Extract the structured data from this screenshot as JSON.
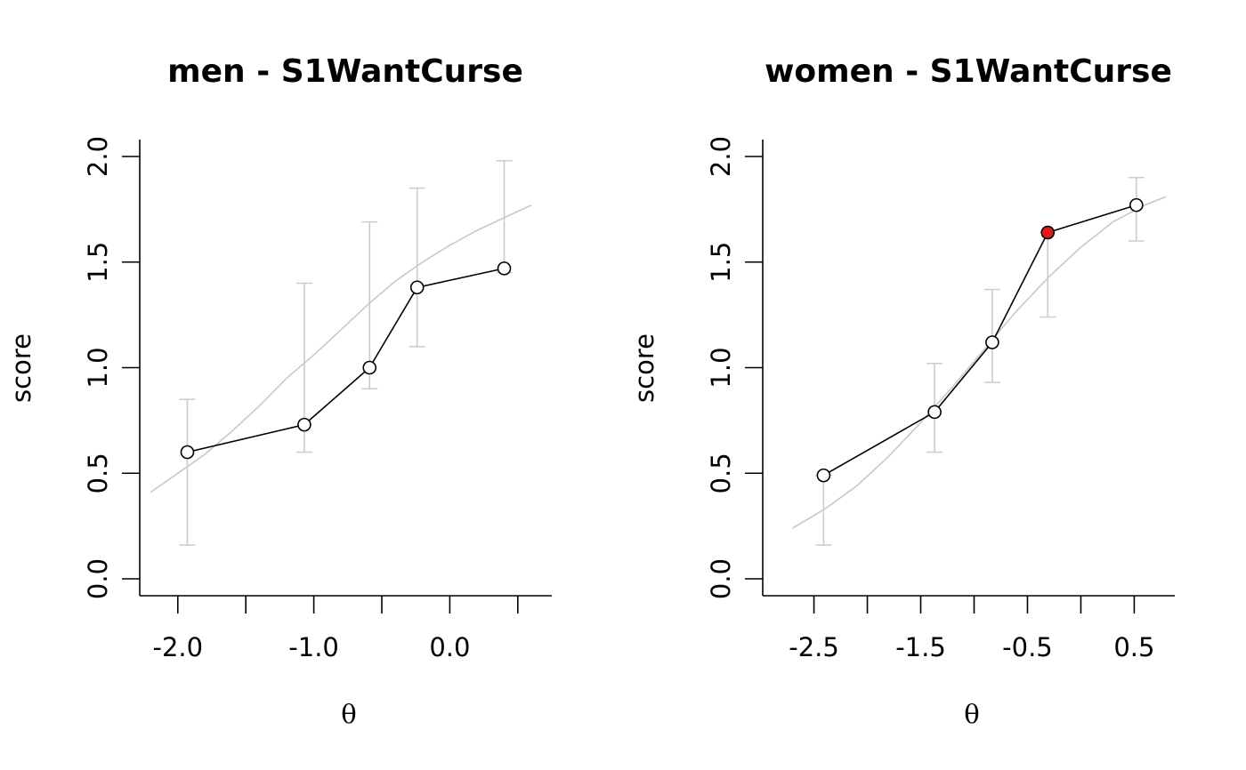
{
  "chart_data": [
    {
      "type": "line",
      "title": "men - S1WantCurse",
      "xlabel": "θ",
      "ylabel": "score",
      "xlim": [
        -2.28,
        0.75
      ],
      "ylim": [
        -0.08,
        2.08
      ],
      "xticks": [
        -2.0,
        -1.5,
        -1.0,
        -0.5,
        0.0,
        0.5
      ],
      "xtick_labels": [
        "-2.0",
        "",
        "-1.0",
        "",
        "0.0",
        ""
      ],
      "yticks": [
        0.0,
        0.5,
        1.0,
        1.5,
        2.0
      ],
      "ytick_labels": [
        "0.0",
        "0.5",
        "1.0",
        "1.5",
        "2.0"
      ],
      "grid": false,
      "series": [
        {
          "kind": "observed",
          "x": [
            -1.93,
            -1.07,
            -0.59,
            -0.24,
            0.4
          ],
          "y": [
            0.6,
            0.73,
            1.0,
            1.38,
            1.47
          ],
          "err_low": [
            0.16,
            0.6,
            0.9,
            1.1,
            1.45
          ],
          "err_high": [
            0.85,
            1.4,
            1.69,
            1.85,
            1.98
          ],
          "point_fill": [
            "#ffffff",
            "#ffffff",
            "#ffffff",
            "#ffffff",
            "#ffffff"
          ]
        },
        {
          "kind": "expected",
          "x": [
            -2.2,
            -2.0,
            -1.8,
            -1.6,
            -1.4,
            -1.2,
            -1.0,
            -0.8,
            -0.6,
            -0.4,
            -0.2,
            0.0,
            0.2,
            0.4,
            0.6
          ],
          "y": [
            0.41,
            0.5,
            0.59,
            0.7,
            0.82,
            0.95,
            1.06,
            1.18,
            1.3,
            1.41,
            1.5,
            1.58,
            1.65,
            1.71,
            1.77
          ]
        }
      ]
    },
    {
      "type": "line",
      "title": "women - S1WantCurse",
      "xlabel": "θ",
      "ylabel": "score",
      "xlim": [
        -2.98,
        0.88
      ],
      "ylim": [
        -0.08,
        2.08
      ],
      "xticks": [
        -2.5,
        -2.0,
        -1.5,
        -1.0,
        -0.5,
        0.0,
        0.5
      ],
      "xtick_labels": [
        "-2.5",
        "",
        "-1.5",
        "",
        "-0.5",
        "",
        "0.5"
      ],
      "yticks": [
        0.0,
        0.5,
        1.0,
        1.5,
        2.0
      ],
      "ytick_labels": [
        "0.0",
        "0.5",
        "1.0",
        "1.5",
        "2.0"
      ],
      "grid": false,
      "series": [
        {
          "kind": "observed",
          "x": [
            -2.41,
            -1.37,
            -0.83,
            -0.31,
            0.52
          ],
          "y": [
            0.49,
            0.79,
            1.12,
            1.64,
            1.77
          ],
          "err_low": [
            0.16,
            0.6,
            0.93,
            1.24,
            1.6
          ],
          "err_high": [
            0.49,
            1.02,
            1.37,
            1.64,
            1.9
          ],
          "point_fill": [
            "#ffffff",
            "#ffffff",
            "#ffffff",
            "#e31a1c",
            "#ffffff"
          ]
        },
        {
          "kind": "expected",
          "x": [
            -2.7,
            -2.4,
            -2.1,
            -1.8,
            -1.5,
            -1.2,
            -0.9,
            -0.6,
            -0.3,
            0.0,
            0.3,
            0.6,
            0.8
          ],
          "y": [
            0.24,
            0.33,
            0.44,
            0.58,
            0.74,
            0.91,
            1.09,
            1.27,
            1.43,
            1.57,
            1.69,
            1.77,
            1.81
          ]
        }
      ]
    }
  ]
}
